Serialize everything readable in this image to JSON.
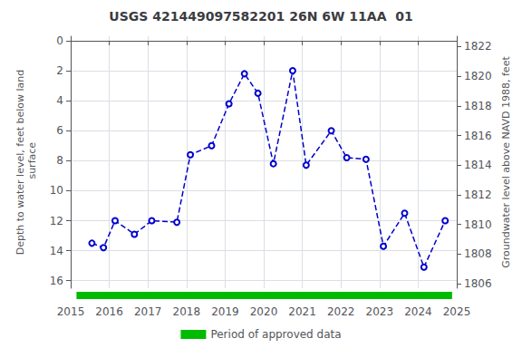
{
  "chart_data": {
    "type": "line",
    "title": "USGS 421449097582201 26N 6W 11AA  01",
    "ylabel": "Depth to water level, feet below land\n surface",
    "y2label": "Groundwater level above NAVD 1988, feet",
    "xlim": [
      2015,
      2025
    ],
    "xticks": [
      2015,
      2016,
      2017,
      2018,
      2019,
      2020,
      2021,
      2022,
      2023,
      2024,
      2025
    ],
    "ylim": [
      16.5,
      -0.3
    ],
    "yticks": [
      0,
      2,
      4,
      6,
      8,
      10,
      12,
      14,
      16
    ],
    "y2lim": [
      1805.7,
      1822.7
    ],
    "y2ticks": [
      1806,
      1808,
      1810,
      1812,
      1814,
      1816,
      1818,
      1820,
      1822
    ],
    "grid": true,
    "legend": "bottom",
    "series": [
      {
        "type": "line",
        "color": "#0000cc",
        "line_style": "dashed",
        "marker": "circle",
        "x": [
          2015.55,
          2015.85,
          2016.15,
          2016.65,
          2017.1,
          2017.75,
          2018.1,
          2018.65,
          2019.1,
          2019.5,
          2019.85,
          2020.25,
          2020.75,
          2021.1,
          2021.75,
          2022.15,
          2022.65,
          2023.1,
          2023.65,
          2024.15,
          2024.7
        ],
        "values": [
          13.5,
          13.8,
          12.0,
          12.9,
          12.0,
          12.1,
          7.6,
          7.0,
          4.2,
          2.2,
          3.5,
          8.2,
          2.0,
          8.3,
          6.0,
          7.8,
          7.9,
          13.7,
          11.5,
          15.1,
          12.0
        ]
      },
      {
        "type": "span",
        "name": "Period of approved data",
        "color": "#00bb00",
        "x": [
          2015.15,
          2024.88
        ]
      }
    ]
  }
}
